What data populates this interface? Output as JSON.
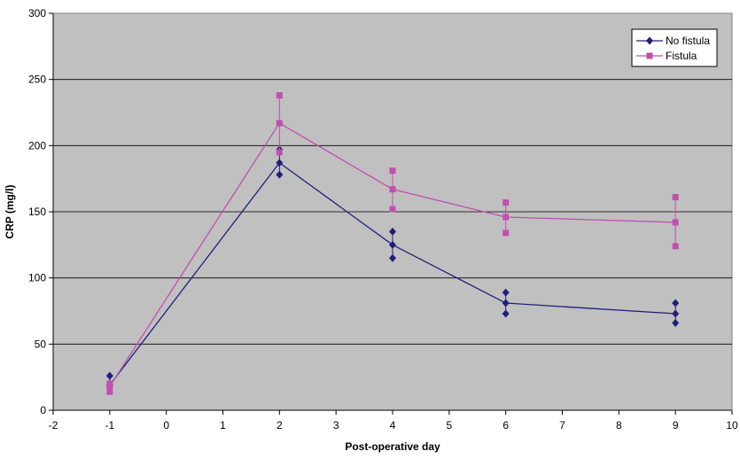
{
  "chart_data": {
    "type": "line",
    "xlabel": "Post-operative day",
    "ylabel": "CRP (mg/l)",
    "xlim": [
      -2,
      10
    ],
    "ylim": [
      0,
      300
    ],
    "x_ticks": [
      "-2",
      "-1",
      "0",
      "1",
      "2",
      "3",
      "4",
      "5",
      "6",
      "7",
      "8",
      "9",
      "10"
    ],
    "y_ticks": [
      "0",
      "50",
      "100",
      "150",
      "200",
      "250",
      "300"
    ],
    "grid": "horizontal",
    "plot_background": "#c0c0c0",
    "legend_position": "top-right",
    "series": [
      {
        "name": "No fistula",
        "color": "#1f1f7a",
        "marker": "diamond",
        "x": [
          -1,
          2,
          4,
          6,
          9
        ],
        "values": [
          19,
          187,
          125,
          81,
          73
        ],
        "error_upper": [
          26,
          197,
          135,
          89,
          81
        ],
        "error_lower": [
          19,
          178,
          115,
          73,
          66
        ]
      },
      {
        "name": "Fistula",
        "color": "#c050b0",
        "marker": "square",
        "x": [
          -1,
          2,
          4,
          6,
          9
        ],
        "values": [
          18,
          217,
          167,
          146,
          142
        ],
        "error_upper": [
          20,
          238,
          181,
          157,
          161
        ],
        "error_lower": [
          14,
          195,
          152,
          134,
          124
        ]
      }
    ]
  }
}
